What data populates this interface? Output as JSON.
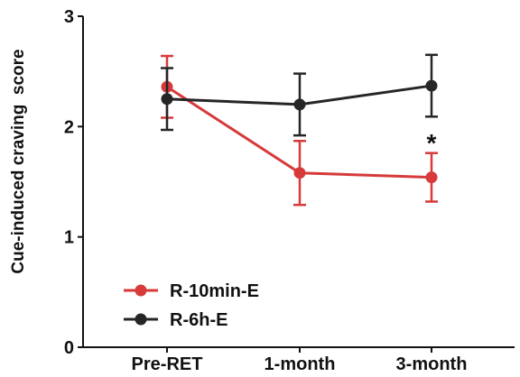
{
  "chart_data": {
    "type": "line",
    "ylabel": "Cue-induced craving  score",
    "xlabel": "",
    "title": "",
    "categories": [
      "Pre-RET",
      "1-month",
      "3-month"
    ],
    "ylim": [
      0,
      3
    ],
    "yticks": [
      0,
      1,
      2,
      3
    ],
    "grid": false,
    "legend_position": "bottom-left",
    "series": [
      {
        "name": "R-10min-E",
        "color": "#d63a3a",
        "values": [
          2.36,
          1.58,
          1.54
        ],
        "error": [
          0.28,
          0.29,
          0.22
        ]
      },
      {
        "name": "R-6h-E",
        "color": "#262626",
        "values": [
          2.25,
          2.2,
          2.37
        ],
        "error": [
          0.28,
          0.28,
          0.28
        ]
      }
    ],
    "annotations": [
      {
        "text": "*",
        "category": "3-month",
        "y": 1.92
      }
    ]
  }
}
